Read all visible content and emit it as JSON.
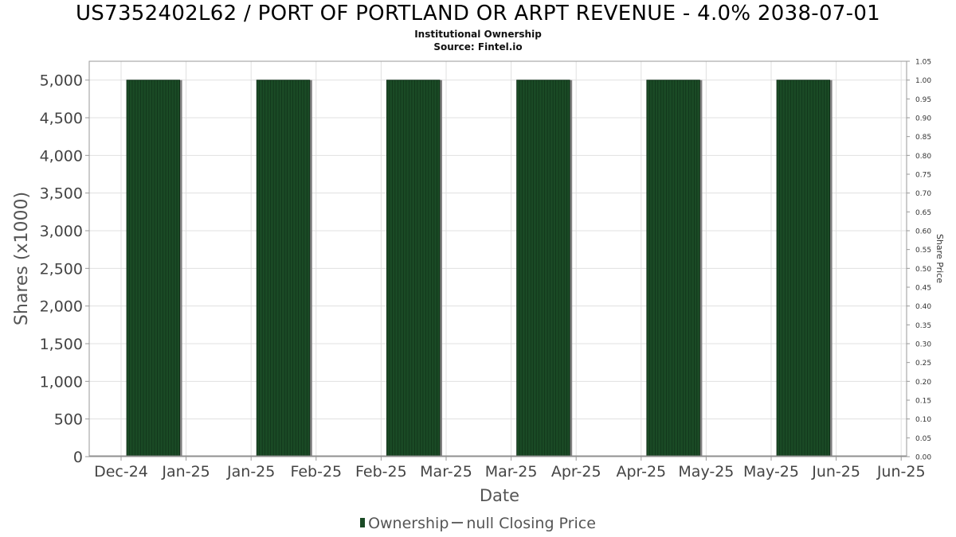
{
  "header": {
    "title": "US7352402L62 / PORT OF PORTLAND OR ARPT REVENUE - 4.0% 2038-07-01",
    "subtitle": "Institutional Ownership",
    "source": "Source: Fintel.io"
  },
  "legend": {
    "ownership": "Ownership",
    "price": "null Closing Price"
  },
  "colors": {
    "bar": "#1a4a25",
    "bar_edge": "#0e2d16",
    "bar_shadow": "#808080",
    "grid": "#e0e0e0"
  },
  "chart_data": {
    "type": "bar",
    "title": "US7352402L62 / PORT OF PORTLAND OR ARPT REVENUE - 4.0% 2038-07-01",
    "xlabel": "Date",
    "ylabel": "Shares (x1000)",
    "y2label": "Share Price",
    "ylim": [
      0,
      5250
    ],
    "y2lim": [
      0,
      1.05
    ],
    "yticks": [
      "0",
      "500",
      "1,000",
      "1,500",
      "2,000",
      "2,500",
      "3,000",
      "3,500",
      "4,000",
      "4,500",
      "5,000"
    ],
    "y2ticks": [
      "0.00",
      "0.05",
      "0.10",
      "0.15",
      "0.20",
      "0.25",
      "0.30",
      "0.35",
      "0.40",
      "0.45",
      "0.50",
      "0.55",
      "0.60",
      "0.65",
      "0.70",
      "0.75",
      "0.80",
      "0.85",
      "0.90",
      "0.95",
      "1.00",
      "1.05"
    ],
    "xticks": [
      "Dec-24",
      "Jan-25",
      "Jan-25",
      "Feb-25",
      "Feb-25",
      "Mar-25",
      "Mar-25",
      "Apr-25",
      "Apr-25",
      "May-25",
      "May-25",
      "Jun-25",
      "Jun-25"
    ],
    "grid": true,
    "legend_position": "bottom",
    "series": [
      {
        "name": "Ownership",
        "bars": [
          {
            "start": "Dec-24",
            "end": "Jan-25",
            "value": 5000
          },
          {
            "start": "Jan-25",
            "end": "Feb-25",
            "value": 5000
          },
          {
            "start": "Feb-25",
            "end": "Mar-25",
            "value": 5000
          },
          {
            "start": "Mar-25",
            "end": "Apr-25",
            "value": 5000
          },
          {
            "start": "Apr-25",
            "end": "May-25",
            "value": 5000
          },
          {
            "start": "May-25",
            "end": "Jun-25",
            "value": 5000
          }
        ]
      },
      {
        "name": "null Closing Price",
        "values": []
      }
    ]
  }
}
